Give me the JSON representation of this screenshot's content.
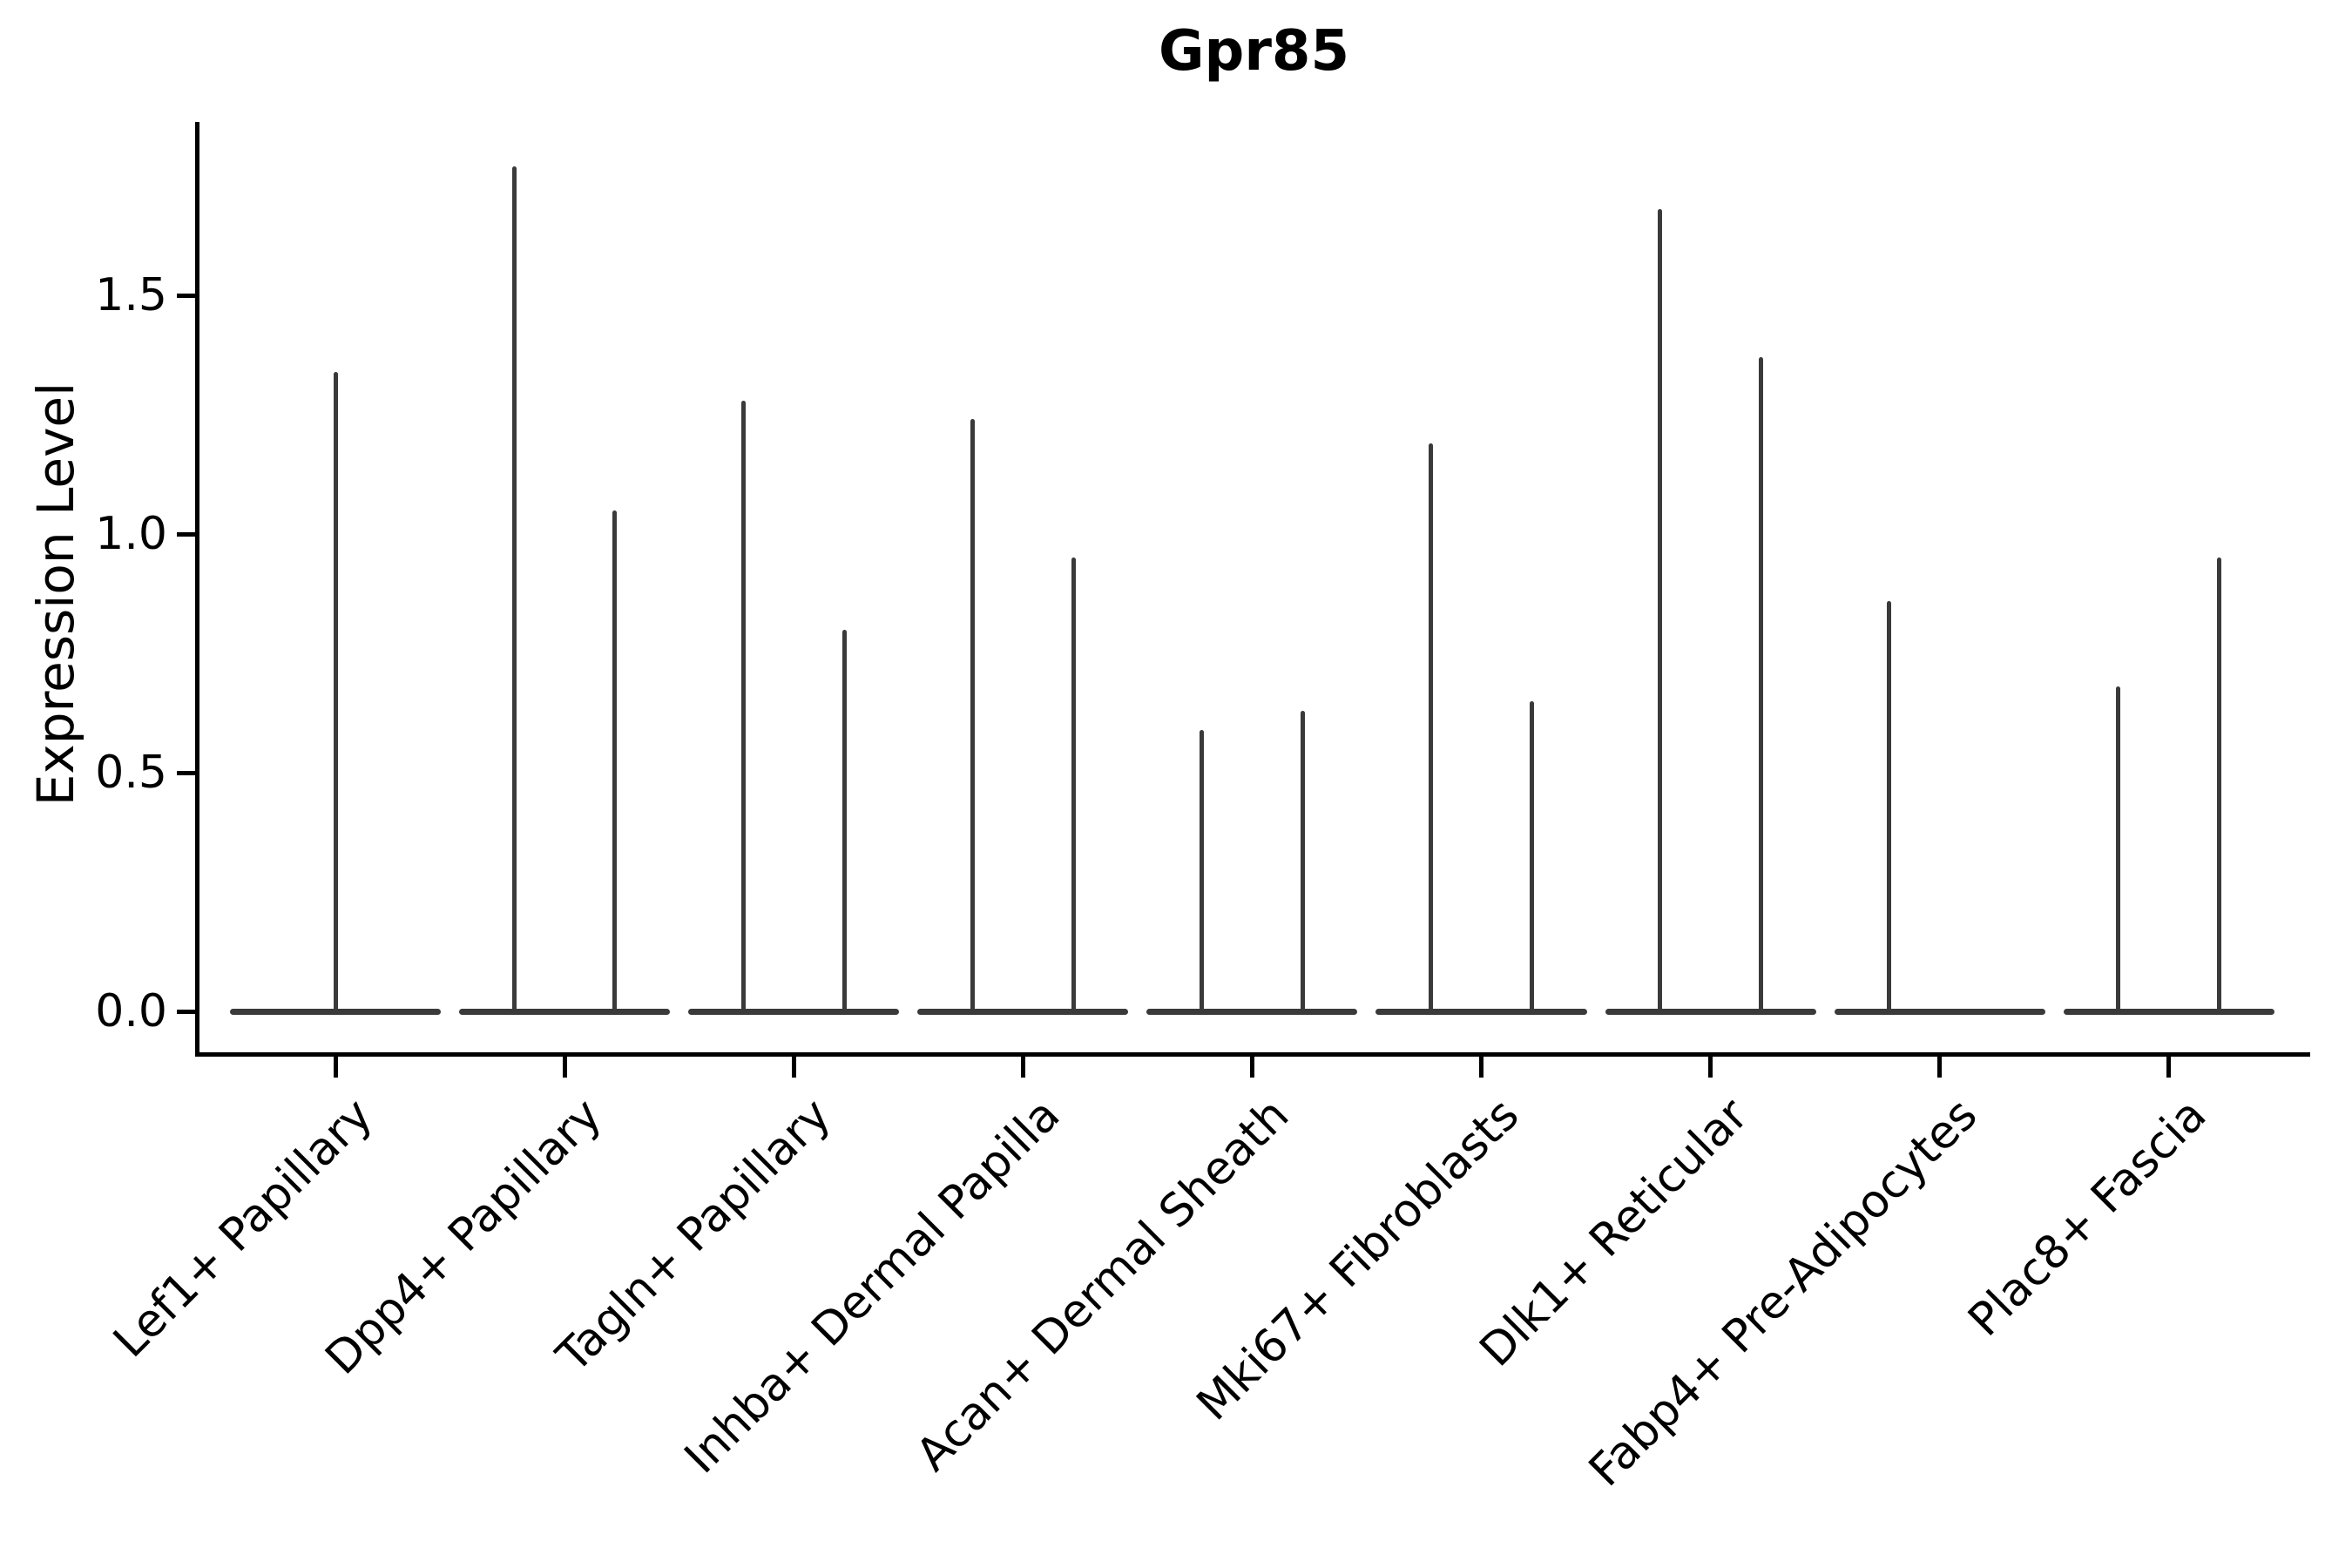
{
  "chart_data": {
    "type": "violin",
    "title": "Gpr85",
    "ylabel": "Expression Level",
    "xlabel": "",
    "yticks": [
      0.0,
      0.5,
      1.0,
      1.5
    ],
    "ytick_labels": [
      "0.0",
      "0.5",
      "1.0",
      "1.5"
    ],
    "ylim": [
      -0.09,
      1.86
    ],
    "grid": false,
    "legend": "none",
    "categories": [
      "Lef1+ Papillary",
      "Dpp4+ Papillary",
      "Tagln+ Papillary",
      "Inhba+ Dermal Papilla",
      "Acan+ Dermal Sheath",
      "Mki67+ Fibroblasts",
      "Dlk1+ Reticular",
      "Fabp4+ Pre-Adipocytes",
      "Plac8+ Fascia"
    ],
    "series": [
      {
        "category": "Lef1+ Papillary",
        "baseline_value": 0.0,
        "spikes": [
          {
            "offset": 0.0,
            "max": 1.34
          }
        ]
      },
      {
        "category": "Dpp4+ Papillary",
        "baseline_value": 0.0,
        "spikes": [
          {
            "offset": -0.22,
            "max": 1.77
          },
          {
            "offset": 0.22,
            "max": 1.05
          }
        ]
      },
      {
        "category": "Tagln+ Papillary",
        "baseline_value": 0.0,
        "spikes": [
          {
            "offset": -0.22,
            "max": 1.28
          },
          {
            "offset": 0.22,
            "max": 0.8
          }
        ]
      },
      {
        "category": "Inhba+ Dermal Papilla",
        "baseline_value": 0.0,
        "spikes": [
          {
            "offset": -0.22,
            "max": 1.24
          },
          {
            "offset": 0.22,
            "max": 0.95
          }
        ]
      },
      {
        "category": "Acan+ Dermal Sheath",
        "baseline_value": 0.0,
        "spikes": [
          {
            "offset": -0.22,
            "max": 0.59
          },
          {
            "offset": 0.22,
            "max": 0.63
          }
        ]
      },
      {
        "category": "Mki67+ Fibroblasts",
        "baseline_value": 0.0,
        "spikes": [
          {
            "offset": -0.22,
            "max": 1.19
          },
          {
            "offset": 0.22,
            "max": 0.65
          }
        ]
      },
      {
        "category": "Dlk1+ Reticular",
        "baseline_value": 0.0,
        "spikes": [
          {
            "offset": -0.22,
            "max": 1.68
          },
          {
            "offset": 0.22,
            "max": 1.37
          }
        ]
      },
      {
        "category": "Fabp4+ Pre-Adipocytes",
        "baseline_value": 0.0,
        "spikes": [
          {
            "offset": -0.22,
            "max": 0.86
          }
        ]
      },
      {
        "category": "Plac8+ Fascia",
        "baseline_value": 0.0,
        "spikes": [
          {
            "offset": -0.22,
            "max": 0.68
          },
          {
            "offset": 0.22,
            "max": 0.95
          }
        ]
      }
    ],
    "violin_halfwidth": 0.46,
    "colors": {
      "violin": "#3a3a3a",
      "axis": "#000000",
      "text": "#000000",
      "background": "#ffffff"
    }
  }
}
